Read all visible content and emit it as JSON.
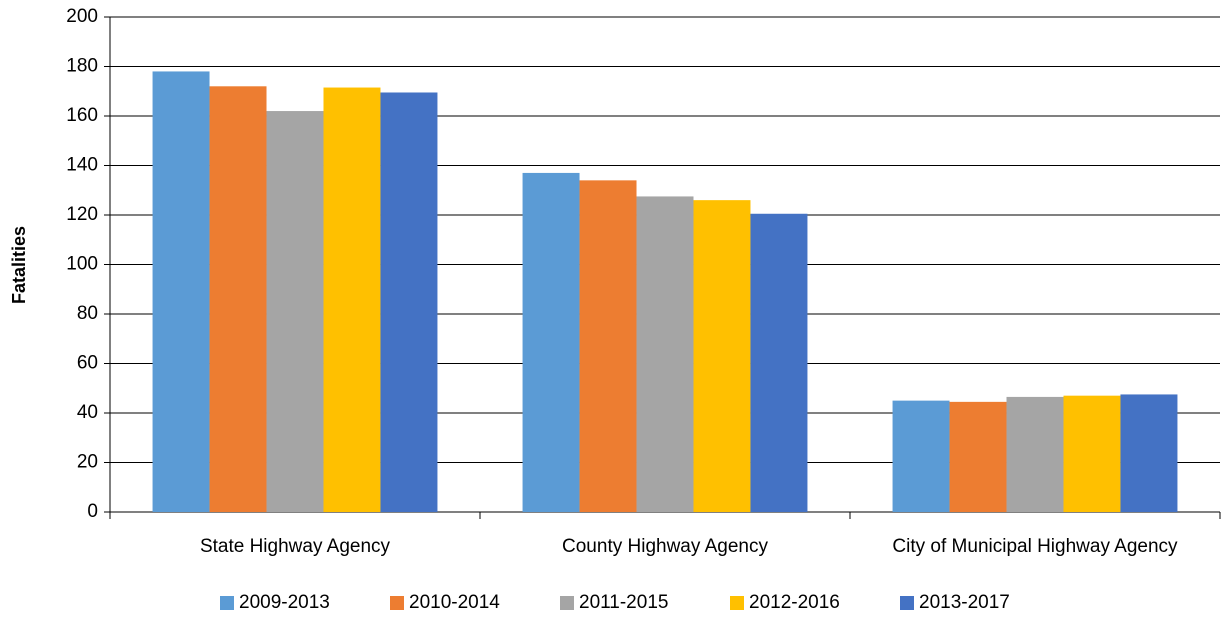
{
  "chart_data": {
    "type": "bar",
    "y_label": "Fatalities",
    "categories": [
      "State Highway Agency",
      "County Highway Agency",
      "City of Municipal Highway Agency"
    ],
    "series": [
      {
        "name": "2009-2013",
        "color": "#5b9bd5",
        "values": [
          178,
          137,
          45
        ]
      },
      {
        "name": "2010-2014",
        "color": "#ed7d31",
        "values": [
          172,
          134,
          44.5
        ]
      },
      {
        "name": "2011-2015",
        "color": "#a5a5a5",
        "values": [
          162,
          127.5,
          46.5
        ]
      },
      {
        "name": "2012-2016",
        "color": "#ffc000",
        "values": [
          171.5,
          126,
          47
        ]
      },
      {
        "name": "2013-2017",
        "color": "#4472c4",
        "values": [
          169.5,
          120.5,
          47.5
        ]
      }
    ],
    "ylim": [
      0,
      200
    ],
    "yticks": [
      0,
      20,
      40,
      60,
      80,
      100,
      120,
      140,
      160,
      180,
      200
    ],
    "grid": true,
    "legend": "bottom"
  }
}
